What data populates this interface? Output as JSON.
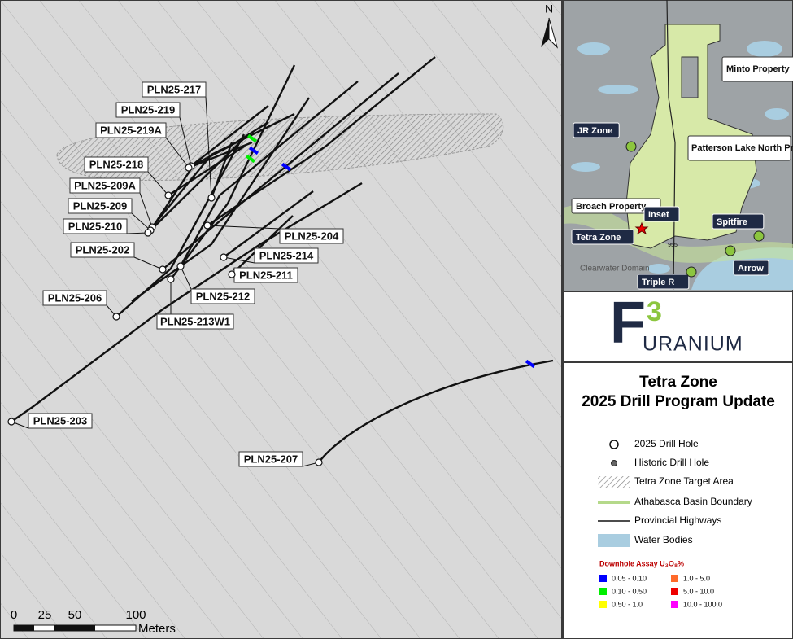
{
  "map": {
    "north": "N",
    "scale": {
      "ticks": [
        "0",
        "25",
        "50",
        "100"
      ],
      "unit": "Meters"
    },
    "drill_holes": [
      {
        "label": "PLN25-217"
      },
      {
        "label": "PLN25-219"
      },
      {
        "label": "PLN25-219A"
      },
      {
        "label": "PLN25-218"
      },
      {
        "label": "PLN25-209A"
      },
      {
        "label": "PLN25-209"
      },
      {
        "label": "PLN25-210"
      },
      {
        "label": "PLN25-202"
      },
      {
        "label": "PLN25-206"
      },
      {
        "label": "PLN25-203"
      },
      {
        "label": "PLN25-207"
      },
      {
        "label": "PLN25-204"
      },
      {
        "label": "PLN25-214"
      },
      {
        "label": "PLN25-211"
      },
      {
        "label": "PLN25-212"
      },
      {
        "label": "PLN25-213W1"
      }
    ]
  },
  "inset": {
    "labels": {
      "minto": "Minto Property",
      "jr": "JR Zone",
      "patterson": "Patterson Lake North Property",
      "broach": "Broach Property",
      "inset": "Inset",
      "spitfire": "Spitfire",
      "tetra": "Tetra Zone",
      "arrow": "Arrow",
      "triple_r": "Triple R",
      "clearwater": "Clearwater Domain",
      "highway": "955"
    }
  },
  "logo": {
    "letter": "F",
    "superscript": "3",
    "word": "URANIUM"
  },
  "title": {
    "line1": "Tetra Zone",
    "line2": "2025 Drill Program Update"
  },
  "legend": {
    "items": [
      "2025 Drill Hole",
      "Historic Drill Hole",
      "Tetra Zone Target Area",
      "Athabasca Basin Boundary",
      "Provincial Highways",
      "Water Bodies"
    ],
    "assay_title": "Downhole Assay U₃O₈%",
    "assay": [
      {
        "label": "0.05 - 0.10",
        "color": "#0000ff"
      },
      {
        "label": "0.10 - 0.50",
        "color": "#00ee00"
      },
      {
        "label": "0.50 - 1.0",
        "color": "#ffff00"
      },
      {
        "label": "1.0 - 5.0",
        "color": "#ff6a2a"
      },
      {
        "label": "5.0 - 10.0",
        "color": "#ee0000"
      },
      {
        "label": "10.0 - 100.0",
        "color": "#ff00ff"
      }
    ]
  }
}
